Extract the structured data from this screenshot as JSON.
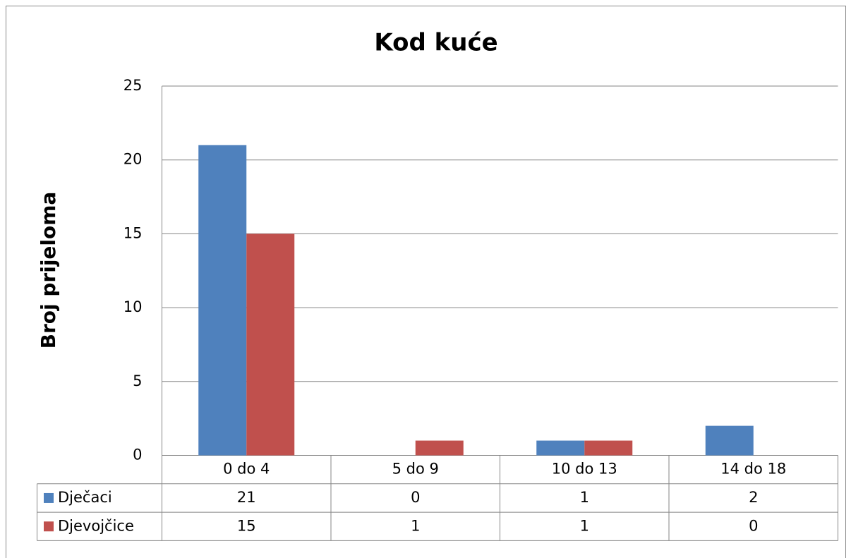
{
  "chart_data": {
    "type": "bar",
    "title": "Kod kuće",
    "y_label": "Broj prijeloma",
    "categories": [
      "0 do 4",
      "5 do 9",
      "10 do 13",
      "14 do 18"
    ],
    "series": [
      {
        "name": "Dječaci",
        "color": "#4f81bd",
        "values": [
          21,
          0,
          1,
          2
        ]
      },
      {
        "name": "Djevojčice",
        "color": "#c0504d",
        "values": [
          15,
          1,
          1,
          0
        ]
      }
    ],
    "ylim": [
      0,
      25
    ],
    "yticks": [
      0,
      5,
      10,
      15,
      20,
      25
    ],
    "grid": true,
    "data_table": true
  }
}
